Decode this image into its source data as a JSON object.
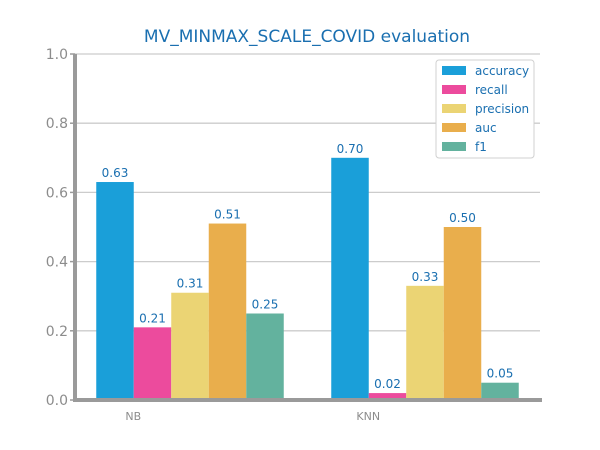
{
  "chart_data": {
    "type": "bar",
    "title": "MV_MINMAX_SCALE_COVID evaluation",
    "xlabel": "",
    "ylabel": "",
    "categories": [
      "NB",
      "KNN"
    ],
    "ylim": [
      0,
      1.0
    ],
    "yticks": [
      "0.0",
      "0.2",
      "0.4",
      "0.6",
      "0.8",
      "1.0"
    ],
    "grid": "horizontal",
    "legend_position": "top-right",
    "series": [
      {
        "name": "accuracy",
        "color": "#1a9fd9",
        "values": [
          0.63,
          0.7
        ],
        "labels": [
          "0.63",
          "0.70"
        ]
      },
      {
        "name": "recall",
        "color": "#ec4b9d",
        "values": [
          0.21,
          0.02
        ],
        "labels": [
          "0.21",
          "0.02"
        ]
      },
      {
        "name": "precision",
        "color": "#ebd474",
        "values": [
          0.31,
          0.33
        ],
        "labels": [
          "0.31",
          "0.33"
        ]
      },
      {
        "name": "auc",
        "color": "#e9ae4c",
        "values": [
          0.51,
          0.5
        ],
        "labels": [
          "0.51",
          "0.50"
        ]
      },
      {
        "name": "f1",
        "color": "#63b29e",
        "values": [
          0.25,
          0.05
        ],
        "labels": [
          "0.25",
          "0.05"
        ]
      }
    ]
  }
}
